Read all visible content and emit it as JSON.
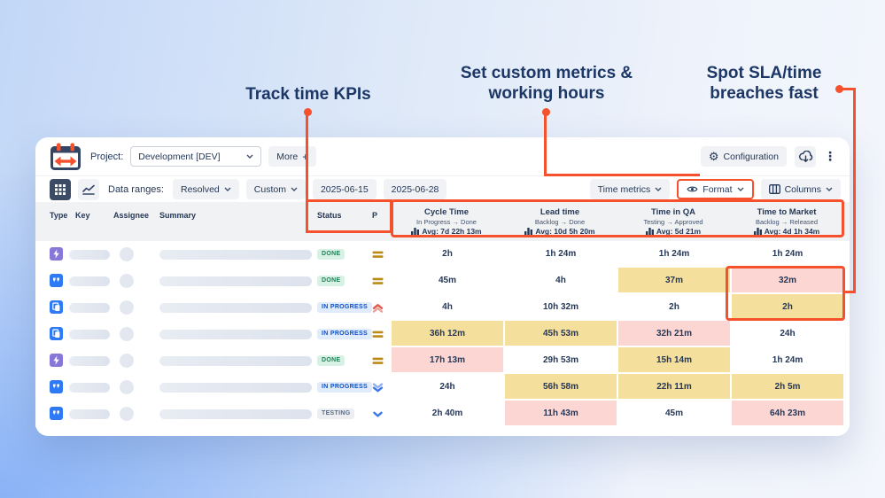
{
  "annotations": {
    "track_kpis": "Track time KPIs",
    "custom_metrics_line1": "Set custom metrics &",
    "custom_metrics_line2": "working hours",
    "sla_line1": "Spot SLA/time",
    "sla_line2": "breaches fast"
  },
  "header": {
    "logo_icon": "calendar-arrows-logo",
    "project_label": "Project:",
    "project_value": "Development [DEV]",
    "more_label": "More",
    "more_plus": "+",
    "configuration": {
      "icon": "gear-icon",
      "label": "Configuration"
    },
    "export_icon": "cloud-download-icon",
    "menu_icon": "kebab-menu-icon"
  },
  "toolbar": {
    "view_icons": [
      "grid-view-icon",
      "chart-view-icon"
    ],
    "data_ranges_label": "Data ranges:",
    "resolved_filter": "Resolved",
    "custom_filter": "Custom",
    "date_from": "2025-06-15",
    "date_to": "2025-06-28",
    "time_metrics_label": "Time metrics",
    "format_label": "Format",
    "format_icon": "eye-icon",
    "columns_label": "Columns",
    "columns_icon": "columns-icon"
  },
  "table": {
    "headers": {
      "type": "Type",
      "key": "Key",
      "assignee": "Assignee",
      "summary": "Summary",
      "status": "Status",
      "priority": "P"
    },
    "metrics": [
      {
        "title": "Cycle Time",
        "subtitle": "In Progress → Done",
        "avg": "Avg: 7d 22h 13m",
        "icon": "bar-chart-icon"
      },
      {
        "title": "Lead time",
        "subtitle": "Backlog → Done",
        "avg": "Avg: 10d 5h 20m",
        "icon": "bar-chart-icon"
      },
      {
        "title": "Time in QA",
        "subtitle": "Testing → Approved",
        "avg": "Avg: 5d 21m",
        "icon": "bar-chart-icon"
      },
      {
        "title": "Time to Market",
        "subtitle": "Backlog → Released",
        "avg": "Avg: 4d 1h 34m",
        "icon": "bar-chart-icon"
      }
    ],
    "rows": [
      {
        "type_icon": "epic-icon",
        "status": "DONE",
        "status_kind": "done",
        "priority_icon": "priority-medium-icon",
        "values": [
          {
            "text": "2h",
            "highlight": "none"
          },
          {
            "text": "1h 24m",
            "highlight": "none"
          },
          {
            "text": "1h 24m",
            "highlight": "none"
          },
          {
            "text": "1h 24m",
            "highlight": "none"
          }
        ]
      },
      {
        "type_icon": "story-icon",
        "status": "DONE",
        "status_kind": "done",
        "priority_icon": "priority-medium-icon",
        "values": [
          {
            "text": "45m",
            "highlight": "none"
          },
          {
            "text": "4h",
            "highlight": "none"
          },
          {
            "text": "37m",
            "highlight": "warning"
          },
          {
            "text": "32m",
            "highlight": "breach"
          }
        ]
      },
      {
        "type_icon": "pages-icon",
        "status": "IN PROGRESS",
        "status_kind": "inprogress",
        "priority_icon": "priority-high-icon",
        "values": [
          {
            "text": "4h",
            "highlight": "none"
          },
          {
            "text": "10h 32m",
            "highlight": "none"
          },
          {
            "text": "2h",
            "highlight": "none"
          },
          {
            "text": "2h",
            "highlight": "warning"
          }
        ]
      },
      {
        "type_icon": "pages-icon",
        "status": "IN PROGRESS",
        "status_kind": "inprogress",
        "priority_icon": "priority-medium-icon",
        "values": [
          {
            "text": "36h 12m",
            "highlight": "warning"
          },
          {
            "text": "45h 53m",
            "highlight": "warning"
          },
          {
            "text": "32h 21m",
            "highlight": "breach"
          },
          {
            "text": "24h",
            "highlight": "none"
          }
        ]
      },
      {
        "type_icon": "epic-icon",
        "status": "DONE",
        "status_kind": "done",
        "priority_icon": "priority-medium-icon",
        "values": [
          {
            "text": "17h 13m",
            "highlight": "breach"
          },
          {
            "text": "29h 53m",
            "highlight": "none"
          },
          {
            "text": "15h 14m",
            "highlight": "warning"
          },
          {
            "text": "1h 24m",
            "highlight": "none"
          }
        ]
      },
      {
        "type_icon": "story-icon",
        "status": "IN PROGRESS",
        "status_kind": "inprogress",
        "priority_icon": "priority-low-icon",
        "values": [
          {
            "text": "24h",
            "highlight": "none"
          },
          {
            "text": "56h 58m",
            "highlight": "warning"
          },
          {
            "text": "22h 11m",
            "highlight": "warning"
          },
          {
            "text": "2h 5m",
            "highlight": "warning"
          }
        ]
      },
      {
        "type_icon": "story-icon",
        "status": "TESTING",
        "status_kind": "testing",
        "priority_icon": "priority-minor-icon",
        "values": [
          {
            "text": "2h 40m",
            "highlight": "none"
          },
          {
            "text": "11h 43m",
            "highlight": "breach"
          },
          {
            "text": "45m",
            "highlight": "none"
          },
          {
            "text": "64h 23m",
            "highlight": "breach"
          }
        ]
      }
    ]
  },
  "colors": {
    "accent_orange": "#F4512C",
    "warning_yellow": "#F5DF9D",
    "breach_pink": "#FBD6D3",
    "navy_text": "#253858",
    "done_green": "#1F7F56",
    "inprogress_blue": "#0B51CC"
  }
}
